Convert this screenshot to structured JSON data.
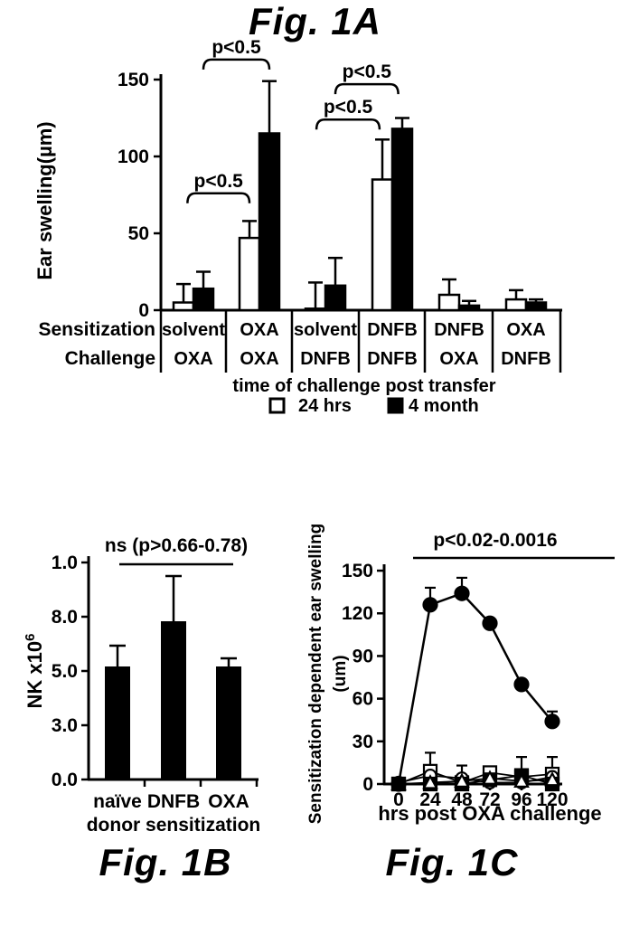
{
  "colors": {
    "ink": "#000000",
    "paper": "#ffffff"
  },
  "captions": {
    "figA": "Fig. 1A",
    "figB": "Fig. 1B",
    "figC": "Fig. 1C"
  },
  "chart_data": [
    {
      "id": "figA",
      "type": "bar",
      "ylabel": "Ear swelling(µm)",
      "ytick_labels": [
        "0",
        "50",
        "100",
        "150"
      ],
      "ytick_values": [
        0,
        50,
        100,
        150
      ],
      "ylim": [
        0,
        150
      ],
      "row_labels": [
        "Sensitization",
        "Challenge"
      ],
      "groups": [
        {
          "sensitization": "solvent",
          "challenge": "OXA"
        },
        {
          "sensitization": "OXA",
          "challenge": "OXA"
        },
        {
          "sensitization": "solvent",
          "challenge": "DNFB"
        },
        {
          "sensitization": "DNFB",
          "challenge": "DNFB"
        },
        {
          "sensitization": "DNFB",
          "challenge": "OXA"
        },
        {
          "sensitization": "OXA",
          "challenge": "DNFB"
        }
      ],
      "series": [
        {
          "name": "24 hrs",
          "fill": "white",
          "values": [
            5,
            47,
            1,
            85,
            10,
            7
          ],
          "errors_up": [
            12,
            11,
            17,
            26,
            10,
            6
          ]
        },
        {
          "name": "4 month",
          "fill": "black",
          "values": [
            14,
            115,
            16,
            118,
            3,
            5
          ],
          "errors_up": [
            11,
            34,
            18,
            7,
            3,
            2
          ]
        }
      ],
      "legend_title": "time of challenge post transfer",
      "significance": [
        {
          "label": "p<0.5",
          "g1": 0,
          "p1": 0.5,
          "g2": 1,
          "p2": 0.5,
          "y": 163
        },
        {
          "label": "p<0.5",
          "g1": 0,
          "p1": -0.3,
          "g2": 1,
          "p2": -0.5,
          "y": 76
        },
        {
          "label": "p<0.5",
          "g1": 2,
          "p1": -0.45,
          "g2": 3,
          "p2": -0.64,
          "y": 124
        },
        {
          "label": "p<0.5",
          "g1": 2,
          "p1": 0.5,
          "g2": 3,
          "p2": 0.3,
          "y": 147
        }
      ]
    },
    {
      "id": "figB",
      "type": "bar",
      "annotation": "ns (p>0.66-0.78)",
      "ylabel": "NK x10⁶",
      "ylabel_base": "NK x10",
      "ylabel_exponent": "6",
      "ytick_labels": [
        "0.0",
        "3.0",
        "5.0",
        "8.0",
        "1.0"
      ],
      "ytick_values": [
        0,
        3,
        5,
        8,
        10
      ],
      "xlabel": "donor sensitization",
      "categories": [
        "naïve",
        "DNFB",
        "OXA"
      ],
      "values": [
        5.2,
        7.7,
        5.2
      ],
      "errors_up": [
        1.2,
        1.8,
        0.5
      ]
    },
    {
      "id": "figC",
      "type": "line",
      "title": "p<0.02-0.0016",
      "ylabel_lines": [
        "Sensitization dependent ear swelling",
        "(um)"
      ],
      "xlabel": "hrs post OXA challenge",
      "x": [
        0,
        24,
        48,
        72,
        96,
        120
      ],
      "xtick_labels": [
        "0",
        "24",
        "48",
        "72",
        "96",
        "120"
      ],
      "ytick_labels": [
        "0",
        "30",
        "60",
        "90",
        "120",
        "150"
      ],
      "ytick_values": [
        0,
        30,
        60,
        90,
        120,
        150
      ],
      "ylim": [
        0,
        150
      ],
      "grid": false,
      "legend": "none",
      "series": [
        {
          "name": "filled-circle",
          "marker": "circle",
          "fill": "black",
          "values": [
            0,
            126,
            134,
            113,
            70,
            44
          ],
          "errors_up": [
            0,
            12,
            11,
            0,
            0,
            7
          ]
        },
        {
          "name": "open-square",
          "marker": "square",
          "fill": "white",
          "values": [
            0,
            9,
            1,
            8,
            5,
            7
          ],
          "errors_up": [
            0,
            13,
            0,
            0,
            0,
            12
          ]
        },
        {
          "name": "open-circle",
          "marker": "circle",
          "fill": "white",
          "values": [
            1,
            6,
            4,
            1,
            1,
            5
          ],
          "errors_up": [
            0,
            0,
            9,
            0,
            0,
            0
          ]
        },
        {
          "name": "filled-square",
          "marker": "square",
          "fill": "black",
          "values": [
            0,
            0,
            0,
            3,
            6,
            0
          ],
          "errors_up": [
            0,
            0,
            0,
            0,
            13,
            0
          ]
        },
        {
          "name": "open-triangle",
          "marker": "triangle",
          "fill": "white",
          "values": [
            0,
            1,
            2,
            4,
            2,
            3
          ],
          "errors_up": [
            0,
            0,
            0,
            0,
            0,
            0
          ]
        }
      ]
    }
  ]
}
